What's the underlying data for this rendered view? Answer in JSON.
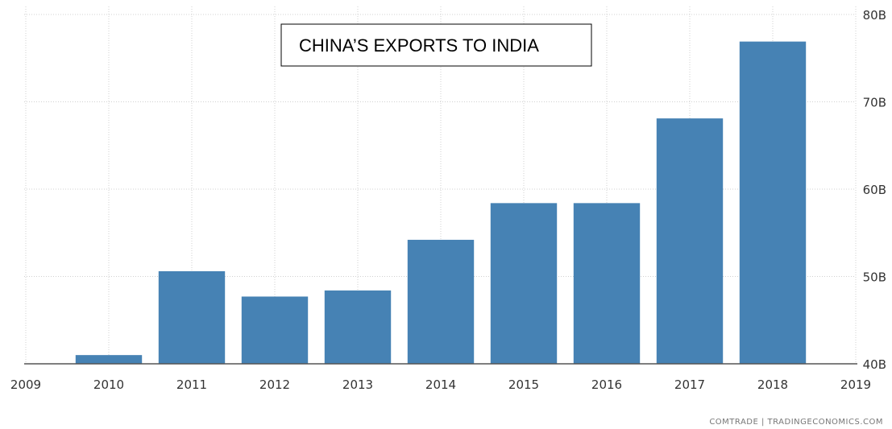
{
  "chart_data": {
    "type": "bar",
    "title": "CHINA’S EXPORTS TO INDIA",
    "categories": [
      "2010",
      "2011",
      "2012",
      "2013",
      "2014",
      "2015",
      "2016",
      "2017",
      "2018"
    ],
    "values": [
      41.0,
      50.6,
      47.7,
      48.4,
      54.2,
      58.4,
      58.4,
      68.1,
      76.9
    ],
    "x_tick_labels": [
      "2009",
      "2010",
      "2011",
      "2012",
      "2013",
      "2014",
      "2015",
      "2016",
      "2017",
      "2018",
      "2019"
    ],
    "y_tick_labels": [
      "40B",
      "50B",
      "60B",
      "70B",
      "80B"
    ],
    "y_ticks": [
      40,
      50,
      60,
      70,
      80
    ],
    "ylim": [
      40,
      80
    ],
    "xlim": [
      2009,
      2019
    ],
    "xlabel": "",
    "ylabel": "",
    "grid": true,
    "bar_color": "#4682b4",
    "source": "COMTRADE | TRADINGECONOMICS.COM"
  }
}
